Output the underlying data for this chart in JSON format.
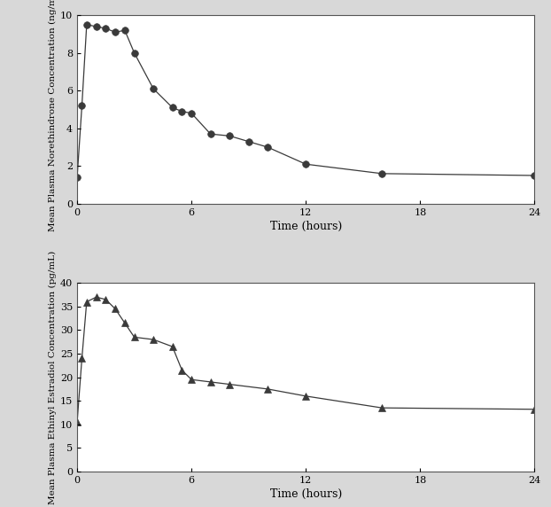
{
  "ne_time": [
    0,
    0.25,
    0.5,
    1.0,
    1.5,
    2.0,
    2.5,
    3.0,
    4.0,
    5.0,
    5.5,
    6.0,
    7.0,
    8.0,
    9.0,
    10.0,
    12.0,
    16.0,
    24.0
  ],
  "ne_conc": [
    1.4,
    5.2,
    9.5,
    9.4,
    9.3,
    9.1,
    9.2,
    8.0,
    6.1,
    5.1,
    4.9,
    4.8,
    3.7,
    3.6,
    3.3,
    3.0,
    2.1,
    1.6,
    1.5
  ],
  "ee_time": [
    0,
    0.25,
    0.5,
    1.0,
    1.5,
    2.0,
    2.5,
    3.0,
    4.0,
    5.0,
    5.5,
    6.0,
    7.0,
    8.0,
    10.0,
    12.0,
    16.0,
    24.0
  ],
  "ee_conc": [
    10.5,
    24.0,
    36.0,
    37.0,
    36.5,
    34.5,
    31.5,
    28.5,
    28.0,
    26.5,
    21.5,
    19.5,
    19.0,
    18.5,
    17.5,
    16.0,
    13.5,
    13.2
  ],
  "ne_ylabel": "Mean Plasma Norethindrone Concentration (ng/mL)",
  "ee_ylabel": "Mean Plasma Ethinyl Estradiol Concentration (pg/mL)",
  "xlabel": "Time (hours)",
  "ne_ylim": [
    0,
    10
  ],
  "ee_ylim": [
    0,
    40
  ],
  "ne_yticks": [
    0,
    2,
    4,
    6,
    8,
    10
  ],
  "ee_yticks": [
    0,
    5,
    10,
    15,
    20,
    25,
    30,
    35,
    40
  ],
  "xticks": [
    0,
    6,
    12,
    18,
    24
  ],
  "fig_bg_color": "#d8d8d8",
  "plot_bg": "#ffffff",
  "line_color": "#3a3a3a",
  "marker_color": "#3a3a3a",
  "ylabel_fontsize": 7.5,
  "xlabel_fontsize": 9,
  "tick_fontsize": 8
}
